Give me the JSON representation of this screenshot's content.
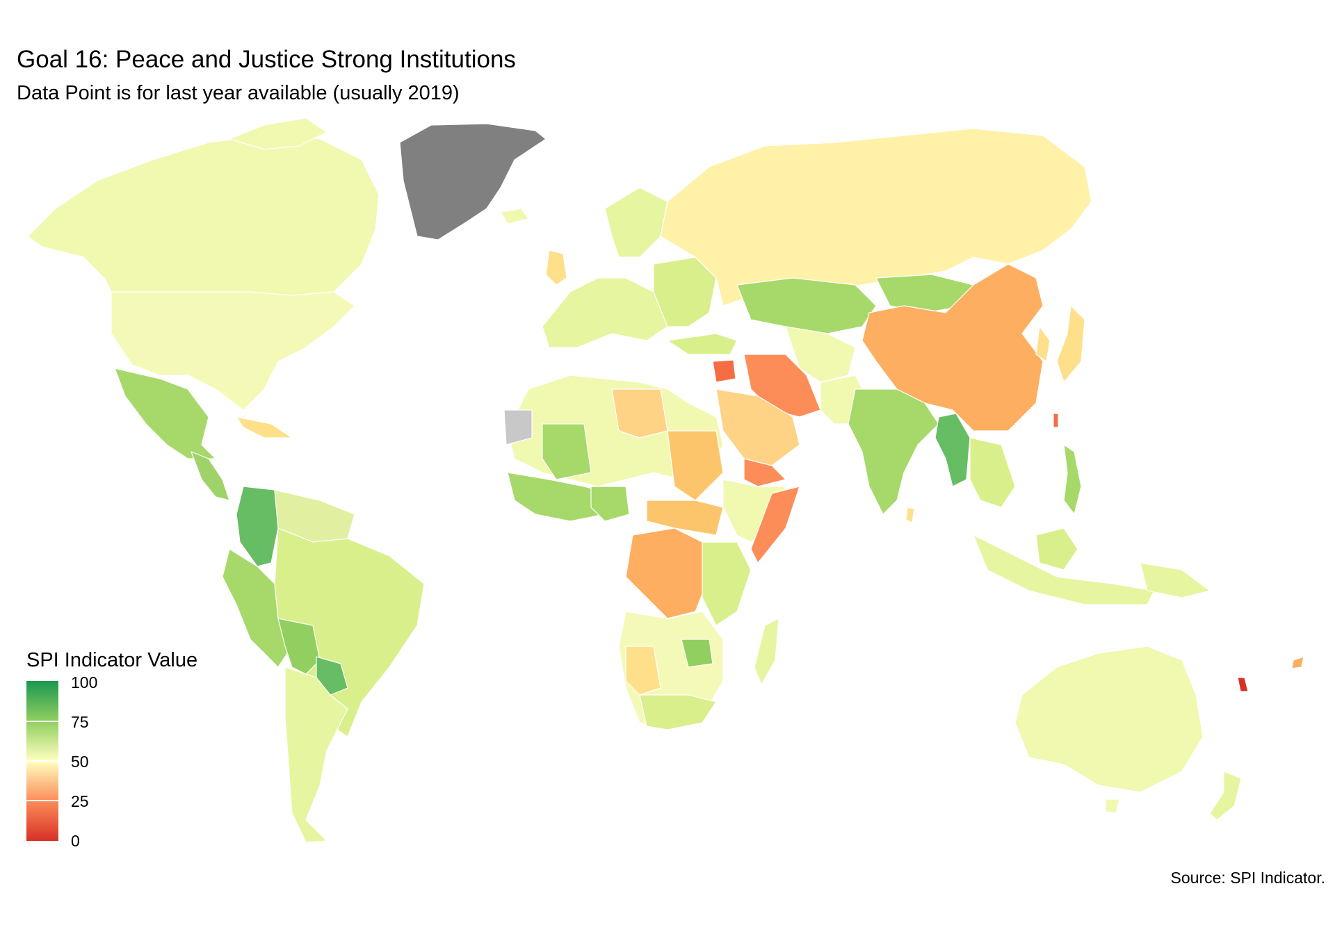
{
  "title": "Goal 16: Peace and Justice Strong Institutions",
  "subtitle": "Data Point is for last year available (usually 2019)",
  "legend": {
    "title": "SPI Indicator Value",
    "ticks": [
      "100",
      "75",
      "50",
      "25",
      "0"
    ],
    "colors": {
      "high": "#1a9850",
      "upper": "#91cf60",
      "mid": "#ffffbf",
      "lower": "#fc8d59",
      "low": "#d73027",
      "missing": "#c8c8c8",
      "greenland": "#808080"
    }
  },
  "caption": "Source: SPI Indicator.",
  "map": {
    "projection": "Robinson-like world map",
    "fill_scale": "diverging red-yellow-green, 0 to 100"
  }
}
